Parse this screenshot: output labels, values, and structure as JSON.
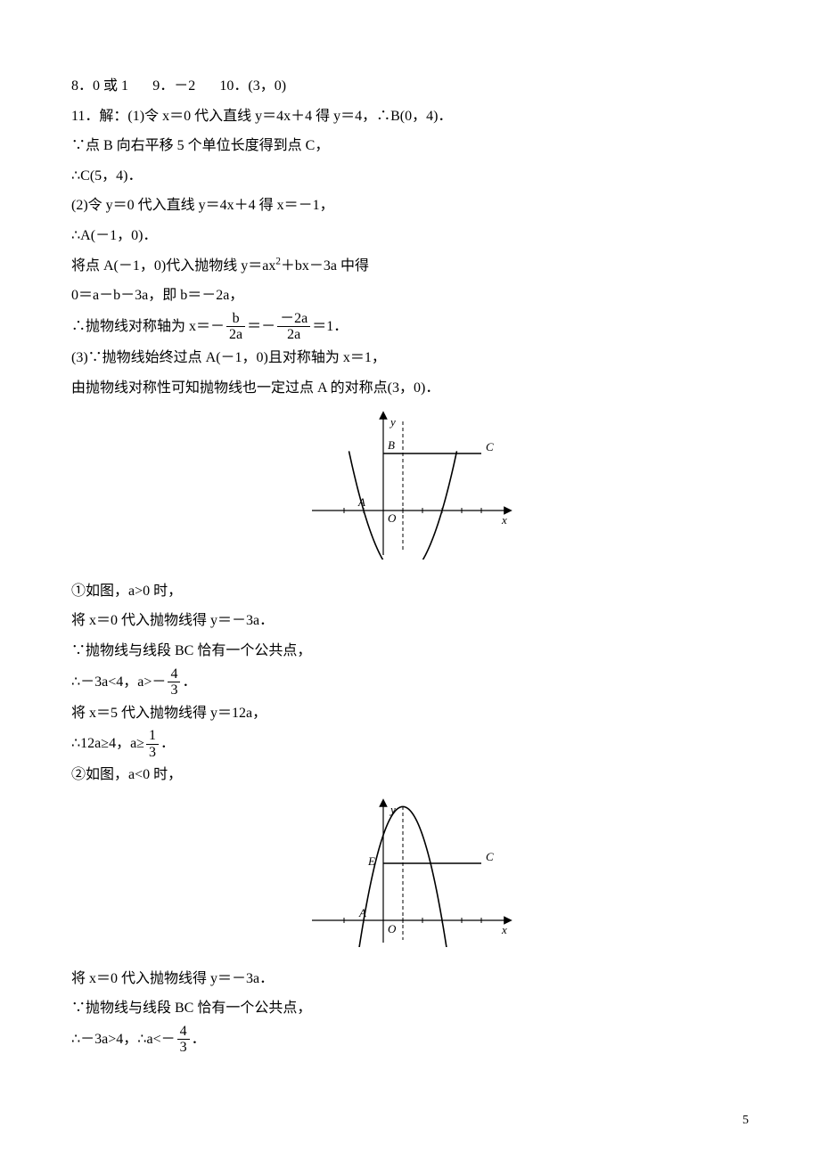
{
  "answers_line": {
    "q8": "8．0 或 1",
    "q9": "9．－2",
    "q10": "10．(3，0)"
  },
  "p11": {
    "l1": "11．解：(1)令 x＝0 代入直线 y＝4x＋4 得 y＝4，∴B(0，4)．",
    "l2": "∵点 B 向右平移 5 个单位长度得到点 C，",
    "l3": "∴C(5，4)．",
    "l4": "(2)令 y＝0 代入直线 y＝4x＋4 得 x＝－1，",
    "l5": "∴A(－1，0)．",
    "l6_a": "将点 A(－1，0)代入抛物线 y＝ax",
    "l6_b": "＋bx－3a 中得",
    "l7": "0＝a－b－3a，即 b＝－2a，",
    "l8_a": "∴抛物线对称轴为 x＝－",
    "l8_f1n": "b",
    "l8_f1d": "2a",
    "l8_b": "＝－",
    "l8_f2n": "－2a",
    "l8_f2d": "2a",
    "l8_c": "＝1．",
    "l9": "(3)∵抛物线始终过点 A(－1，0)且对称轴为 x＝1，",
    "l10": "由抛物线对称性可知抛物线也一定过点 A 的对称点(3，0)．"
  },
  "case1": {
    "l1": "①如图，a>0 时，",
    "l2": "将 x＝0 代入抛物线得 y＝－3a．",
    "l3": "∵抛物线与线段 BC 恰有一个公共点，",
    "l4_a": "∴－3a<4，a>－",
    "l4_fn": "4",
    "l4_fd": "3",
    "l4_b": "．",
    "l5": "将 x＝5 代入抛物线得 y＝12a，",
    "l6_a": "∴12a≥4，a≥",
    "l6_fn": "1",
    "l6_fd": "3",
    "l6_b": "．",
    "l7": "②如图，a<0 时，"
  },
  "case2": {
    "l1": "将 x＝0 代入抛物线得 y＝－3a．",
    "l2": "∵抛物线与线段 BC 恰有一个公共点，",
    "l3_a": "∴－3a>4，∴a<－",
    "l3_fn": "4",
    "l3_fd": "3",
    "l3_b": "．"
  },
  "fig1": {
    "labels": {
      "y": "y",
      "x": "x",
      "O": "O",
      "A": "A",
      "B": "B",
      "C": "C"
    },
    "colors": {
      "axis": "#000000",
      "curve": "#000000",
      "dash": "#000000",
      "tick": "#000000"
    }
  },
  "fig2": {
    "labels": {
      "y": "y",
      "x": "x",
      "O": "O",
      "A": "A",
      "E": "E",
      "C": "C"
    },
    "colors": {
      "axis": "#000000",
      "curve": "#000000",
      "dash": "#000000",
      "tick": "#000000"
    }
  },
  "page_number": "5"
}
